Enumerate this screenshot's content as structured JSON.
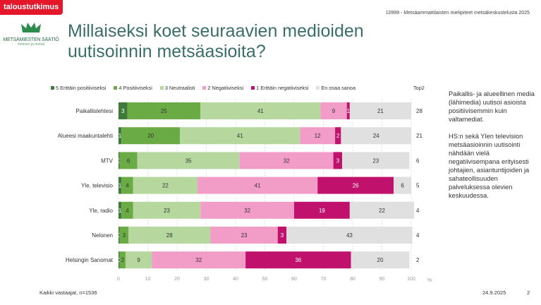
{
  "header": {
    "badge": "taloustutkimus",
    "project": "10999 - Metsäammattilaisten mielipiteet metsäkeskustelusta 2025",
    "logo_org": "METSÄMIESTEN SÄÄTIÖ",
    "logo_tagline": "ihminen ja metsä",
    "title": "Millaiseksi koet seuraavien medioiden uutisoinnin metsäasioita?"
  },
  "side_text": [
    "Paikallis- ja alueellinen media (lähimedia) uutisoi asioista positiivisemmin kuin valtamediat.",
    "HS:n sekä Ylen television metsäasioinnin uutisointi nähdään vielä negatiivisempana erityisesti johtajien, asiantuntijoiden ja sahateollisuuden palveluksessa olevien keskuudessa."
  ],
  "footer": {
    "base": "Kaikki vastaajat, n=1536",
    "date": "24.9.2025",
    "page": "2"
  },
  "chart_data": {
    "type": "bar",
    "orientation": "horizontal",
    "stacked": true,
    "categories": [
      "Paikallislehtesi",
      "Alueesi maakuntalehti",
      "MTV",
      "Yle, televisio",
      "Yle, radio",
      "Nelonen",
      "Helsingin Sanomat"
    ],
    "series": [
      {
        "name": "5 Erittäin positiiviseksi",
        "color": "#3f7a3a",
        "values": [
          3,
          1,
          0,
          1,
          1,
          0,
          0
        ]
      },
      {
        "name": "4 Positiiviseksi",
        "color": "#6aab45",
        "values": [
          25,
          20,
          6,
          4,
          4,
          3,
          2
        ]
      },
      {
        "name": "3 Neutraalisti",
        "color": "#b6d89e",
        "values": [
          41,
          41,
          35,
          22,
          23,
          28,
          9
        ]
      },
      {
        "name": "2 Negatiiviseksi",
        "color": "#f29cc8",
        "values": [
          9,
          12,
          32,
          41,
          32,
          23,
          32
        ]
      },
      {
        "name": "1 Erittäin negatiiviseksi",
        "color": "#c0116c",
        "values": [
          1,
          2,
          3,
          26,
          19,
          3,
          36
        ]
      },
      {
        "name": "En osaa sanoa",
        "color": "#e0e0e0",
        "values": [
          21,
          24,
          23,
          6,
          22,
          43,
          20
        ]
      }
    ],
    "top2_label": "Top2",
    "top2": [
      28,
      21,
      6,
      5,
      4,
      4,
      2
    ],
    "xlim": [
      0,
      100
    ],
    "xticks": [
      0,
      10,
      20,
      30,
      40,
      50,
      60,
      70,
      80,
      90,
      100
    ],
    "xunit": "%",
    "grid": true,
    "legend": "top"
  }
}
